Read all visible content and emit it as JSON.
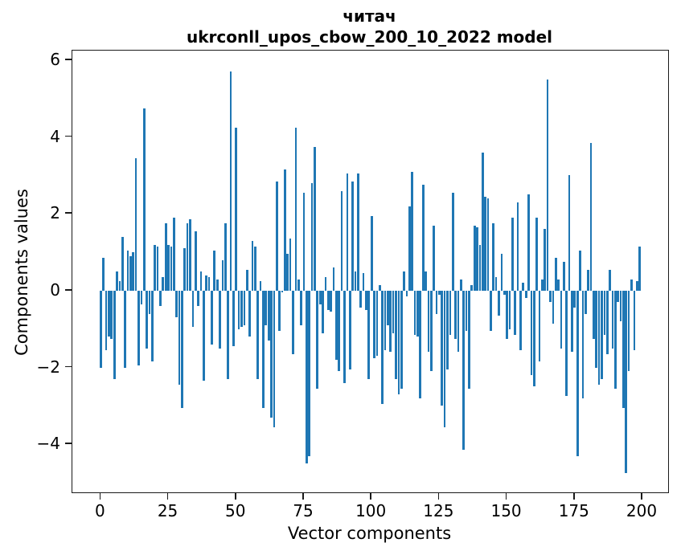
{
  "figure": {
    "title": "читач",
    "subtitle": "ukrconll_upos_cbow_200_10_2022 model"
  },
  "chart_data": {
    "type": "bar",
    "title": "читач",
    "subtitle": "ukrconll_upos_cbow_200_10_2022 model",
    "xlabel": "Vector components",
    "ylabel": "Components values",
    "bar_color": "#1f77b4",
    "n_components": 200,
    "bar_width_units": 0.8,
    "grid": false,
    "legend": false,
    "xlim": [
      -10.5,
      209.5
    ],
    "ylim": [
      -5.25,
      6.25
    ],
    "xticks": {
      "values": [
        0,
        25,
        50,
        75,
        100,
        125,
        150,
        175,
        200
      ],
      "labels": [
        "0",
        "25",
        "50",
        "75",
        "100",
        "125",
        "150",
        "175",
        "200"
      ]
    },
    "yticks": {
      "values": [
        6,
        4,
        2,
        0,
        -2,
        -4
      ],
      "labels": [
        "6",
        "4",
        "2",
        "0",
        "−2",
        "−4"
      ]
    },
    "values": [
      -2.0,
      0.85,
      -1.55,
      -1.2,
      -1.25,
      -2.3,
      0.5,
      0.25,
      1.4,
      -2.0,
      1.05,
      0.9,
      1.0,
      3.45,
      -1.95,
      -0.35,
      4.75,
      -1.5,
      -0.6,
      -1.85,
      1.2,
      1.15,
      -0.4,
      0.35,
      1.75,
      1.2,
      1.15,
      1.9,
      -0.7,
      -2.45,
      -3.05,
      1.1,
      1.75,
      1.85,
      -0.95,
      1.55,
      -0.4,
      0.5,
      -2.35,
      0.4,
      0.35,
      -1.4,
      1.05,
      0.3,
      -1.5,
      0.8,
      1.75,
      -2.3,
      5.7,
      -1.45,
      4.25,
      -1.0,
      -0.95,
      -0.9,
      0.55,
      -1.2,
      1.3,
      1.15,
      -2.3,
      0.25,
      -3.05,
      -0.9,
      -1.3,
      -3.3,
      -3.55,
      2.85,
      -1.05,
      -0.05,
      3.15,
      0.95,
      1.35,
      -1.65,
      4.25,
      0.3,
      -0.9,
      2.55,
      -4.5,
      -4.3,
      2.8,
      3.75,
      -2.55,
      -0.35,
      -1.1,
      0.35,
      -0.5,
      -0.55,
      0.6,
      -1.8,
      -2.1,
      2.6,
      -2.4,
      3.05,
      -2.05,
      2.85,
      0.5,
      3.05,
      -0.45,
      0.45,
      -0.5,
      -2.3,
      1.95,
      -1.75,
      -1.7,
      0.15,
      -2.95,
      -1.55,
      -0.9,
      -1.6,
      -1.1,
      -2.3,
      -2.7,
      -2.55,
      0.5,
      -0.15,
      2.2,
      3.1,
      -1.15,
      -1.2,
      -2.8,
      2.75,
      0.5,
      -1.6,
      -2.1,
      1.7,
      -0.6,
      -0.1,
      -3.0,
      -3.55,
      -2.05,
      -1.15,
      2.55,
      -1.25,
      -1.6,
      0.3,
      -4.15,
      -1.05,
      -2.55,
      0.15,
      1.7,
      1.65,
      1.2,
      3.6,
      2.45,
      2.4,
      -1.05,
      1.75,
      0.35,
      -0.65,
      0.95,
      -0.1,
      -1.25,
      -1.0,
      1.9,
      -1.15,
      2.3,
      -1.55,
      0.2,
      -0.2,
      2.5,
      -2.2,
      -2.5,
      1.9,
      -1.85,
      0.3,
      1.6,
      5.5,
      -0.3,
      -0.85,
      0.85,
      0.3,
      -1.5,
      0.75,
      -2.75,
      3.0,
      -1.6,
      -0.45,
      -4.3,
      1.05,
      -2.8,
      -0.6,
      0.55,
      3.85,
      -1.25,
      -2.0,
      -2.45,
      -2.3,
      -1.15,
      -1.65,
      0.55,
      -1.5,
      -2.55,
      -0.3,
      -0.8,
      -3.05,
      -4.75,
      -2.1,
      0.3,
      -1.55,
      0.25,
      1.15
    ]
  }
}
